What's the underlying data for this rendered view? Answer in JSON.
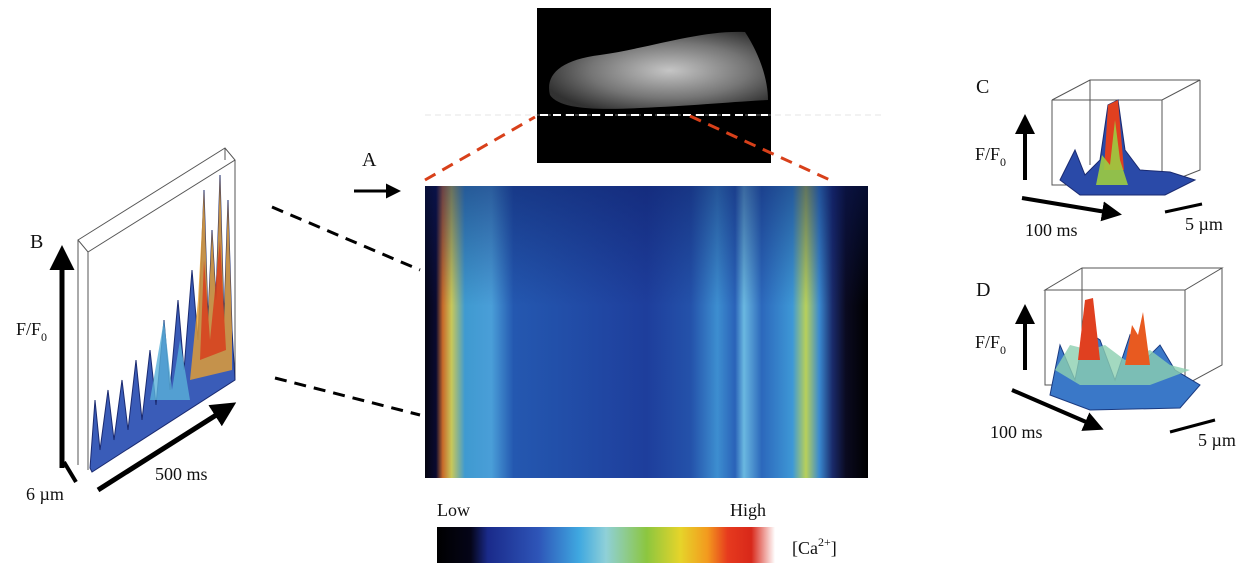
{
  "panels": {
    "a": {
      "label": "A"
    },
    "b": {
      "label": "B",
      "y_axis": {
        "main": "F/F",
        "sub": "0"
      },
      "time": "500 ms",
      "space": "6 µm"
    },
    "c": {
      "label": "C",
      "y_axis": {
        "main": "F/F",
        "sub": "0"
      },
      "time": "100 ms",
      "space": "5 µm"
    },
    "d": {
      "label": "D",
      "y_axis": {
        "main": "F/F",
        "sub": "0"
      },
      "time": "100 ms",
      "space": "5 µm"
    }
  },
  "colorbar": {
    "low": "Low",
    "high": "High",
    "quantity": {
      "open": "[Ca",
      "sup": "2+",
      "close": "]"
    }
  }
}
